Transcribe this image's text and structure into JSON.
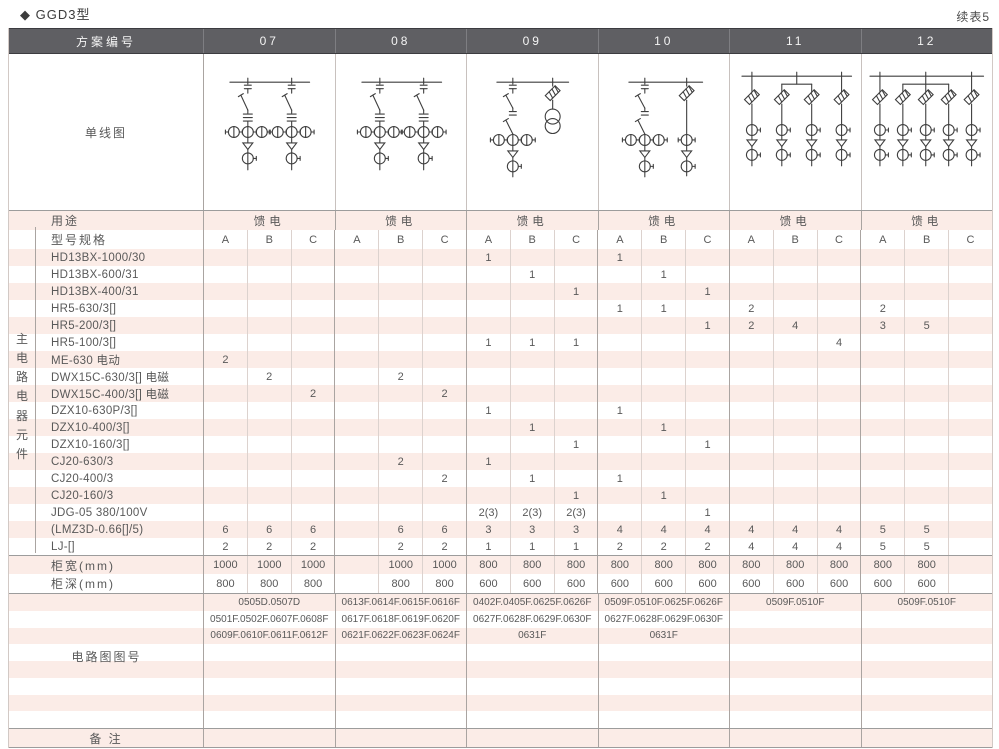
{
  "page": {
    "title_marker": "◆",
    "title": "GGD3型",
    "continuation": "续表5"
  },
  "table": {
    "header_label": "方案编号",
    "schemes": [
      "07",
      "08",
      "09",
      "10",
      "11",
      "12"
    ],
    "diagram_label": "单线图",
    "usage_label": "用途",
    "usage_values": [
      "馈电",
      "馈电",
      "馈电",
      "馈电",
      "馈电",
      "馈电"
    ],
    "spec_label": "型号规格",
    "subcolumns": [
      "A",
      "B",
      "C"
    ],
    "side_label": "主电路电器元件",
    "components": [
      {
        "name": "HD13BX-1000/30",
        "cells": [
          "",
          "",
          "",
          "",
          "",
          "",
          "1",
          "",
          "",
          "1",
          "",
          "",
          "",
          "",
          "",
          "",
          "",
          ""
        ]
      },
      {
        "name": "HD13BX-600/31",
        "cells": [
          "",
          "",
          "",
          "",
          "",
          "",
          "",
          "1",
          "",
          "",
          "1",
          "",
          "",
          "",
          "",
          "",
          "",
          ""
        ]
      },
      {
        "name": "HD13BX-400/31",
        "cells": [
          "",
          "",
          "",
          "",
          "",
          "",
          "",
          "",
          "1",
          "",
          "",
          "1",
          "",
          "",
          "",
          "",
          "",
          ""
        ]
      },
      {
        "name": "HR5-630/3[]",
        "cells": [
          "",
          "",
          "",
          "",
          "",
          "",
          "",
          "",
          "",
          "1",
          "1",
          "",
          "2",
          "",
          "",
          "2",
          "",
          ""
        ]
      },
      {
        "name": "HR5-200/3[]",
        "cells": [
          "",
          "",
          "",
          "",
          "",
          "",
          "",
          "",
          "",
          "",
          "",
          "1",
          "2",
          "4",
          "",
          "3",
          "5",
          ""
        ]
      },
      {
        "name": "HR5-100/3[]",
        "cells": [
          "",
          "",
          "",
          "",
          "",
          "",
          "1",
          "1",
          "1",
          "",
          "",
          "",
          "",
          "",
          "4",
          "",
          "",
          ""
        ]
      },
      {
        "name": "ME-630 电动",
        "cells": [
          "2",
          "",
          "",
          "",
          "",
          "",
          "",
          "",
          "",
          "",
          "",
          "",
          "",
          "",
          "",
          "",
          "",
          ""
        ]
      },
      {
        "name": "DWX15C-630/3[] 电磁",
        "cells": [
          "",
          "2",
          "",
          "",
          "2",
          "",
          "",
          "",
          "",
          "",
          "",
          "",
          "",
          "",
          "",
          "",
          "",
          ""
        ]
      },
      {
        "name": "DWX15C-400/3[] 电磁",
        "cells": [
          "",
          "",
          "2",
          "",
          "",
          "2",
          "",
          "",
          "",
          "",
          "",
          "",
          "",
          "",
          "",
          "",
          "",
          ""
        ]
      },
      {
        "name": "DZX10-630P/3[]",
        "cells": [
          "",
          "",
          "",
          "",
          "",
          "",
          "1",
          "",
          "",
          "1",
          "",
          "",
          "",
          "",
          "",
          "",
          "",
          ""
        ]
      },
      {
        "name": "DZX10-400/3[]",
        "cells": [
          "",
          "",
          "",
          "",
          "",
          "",
          "",
          "1",
          "",
          "",
          "1",
          "",
          "",
          "",
          "",
          "",
          "",
          ""
        ]
      },
      {
        "name": "DZX10-160/3[]",
        "cells": [
          "",
          "",
          "",
          "",
          "",
          "",
          "",
          "",
          "1",
          "",
          "",
          "1",
          "",
          "",
          "",
          "",
          "",
          ""
        ]
      },
      {
        "name": "CJ20-630/3",
        "cells": [
          "",
          "",
          "",
          "",
          "2",
          "",
          "1",
          "",
          "",
          "",
          "",
          "",
          "",
          "",
          "",
          "",
          "",
          ""
        ]
      },
      {
        "name": "CJ20-400/3",
        "cells": [
          "",
          "",
          "",
          "",
          "",
          "2",
          "",
          "1",
          "",
          "1",
          "",
          "",
          "",
          "",
          "",
          "",
          "",
          ""
        ]
      },
      {
        "name": "CJ20-160/3",
        "cells": [
          "",
          "",
          "",
          "",
          "",
          "",
          "",
          "",
          "1",
          "",
          "1",
          "",
          "",
          "",
          "",
          "",
          "",
          ""
        ]
      },
      {
        "name": "JDG-05 380/100V",
        "cells": [
          "",
          "",
          "",
          "",
          "",
          "",
          "2(3)",
          "2(3)",
          "2(3)",
          "",
          "",
          "1",
          "",
          "",
          "",
          "",
          "",
          ""
        ]
      },
      {
        "name": "(LMZ3D-0.66[]/5)",
        "cells": [
          "6",
          "6",
          "6",
          "",
          "6",
          "6",
          "3",
          "3",
          "3",
          "4",
          "4",
          "4",
          "4",
          "4",
          "4",
          "5",
          "5",
          ""
        ]
      },
      {
        "name": "LJ-[]",
        "cells": [
          "2",
          "2",
          "2",
          "",
          "2",
          "2",
          "1",
          "1",
          "1",
          "2",
          "2",
          "2",
          "4",
          "4",
          "4",
          "5",
          "5",
          ""
        ]
      }
    ],
    "cabinet_width": {
      "label": "柜宽(mm)",
      "cells": [
        "1000",
        "1000",
        "1000",
        "",
        "1000",
        "1000",
        "800",
        "800",
        "800",
        "800",
        "800",
        "800",
        "800",
        "800",
        "800",
        "800",
        "800",
        ""
      ]
    },
    "cabinet_depth": {
      "label": "柜深(mm)",
      "cells": [
        "800",
        "800",
        "800",
        "",
        "800",
        "800",
        "600",
        "600",
        "600",
        "600",
        "600",
        "600",
        "600",
        "600",
        "600",
        "600",
        "600",
        ""
      ]
    },
    "circuit_numbers": {
      "label": "电路图图号",
      "total_rows": 8,
      "rows": [
        [
          "0505D.0507D",
          "0613F.0614F.0615F.0616F",
          "0402F.0405F.0625F.0626F",
          "0509F.0510F.0625F.0626F",
          "0509F.0510F",
          "0509F.0510F"
        ],
        [
          "0501F.0502F.0607F.0608F",
          "0617F.0618F.0619F.0620F",
          "0627F.0628F.0629F.0630F",
          "0627F.0628F.0629F.0630F",
          "",
          ""
        ],
        [
          "0609F.0610F.0611F.0612F",
          "0621F.0622F.0623F.0624F",
          "0631F",
          "0631F",
          "",
          ""
        ]
      ]
    },
    "remark_label": "备 注"
  },
  "diagrams": [
    {
      "scheme": "07",
      "type": "two-feeders-knife-switch-fuse",
      "feeders": 2,
      "ct_count": 3
    },
    {
      "scheme": "08",
      "type": "two-feeders-knife-switch-fuse",
      "feeders": 2,
      "ct_count": 3
    },
    {
      "scheme": "09",
      "type": "feeder-double-switch-with-pt-branch",
      "feeders": 1,
      "ct_count": 3,
      "pt_branch": true
    },
    {
      "scheme": "10",
      "type": "feeder-double-switch-with-fuse-branch",
      "feeders": 1,
      "ct_count": 3,
      "branch_ct_count": 1
    },
    {
      "scheme": "11",
      "type": "fuse-feeders",
      "feeders": 4,
      "bracket_feeders": [
        2,
        3
      ]
    },
    {
      "scheme": "12",
      "type": "fuse-feeders",
      "feeders": 5,
      "bracket_feeders": [
        2,
        3,
        4
      ]
    }
  ],
  "colors": {
    "stripe_pink": "#fbece7",
    "header_bg": "#5f5f63",
    "grid_major": "#aaa4a1",
    "grid_minor": "#dcd2ce",
    "section_line": "#9c9c9c",
    "diagram_ink": "#3f3f3f",
    "text": "#595959",
    "header_text": "#f4f4f4"
  }
}
